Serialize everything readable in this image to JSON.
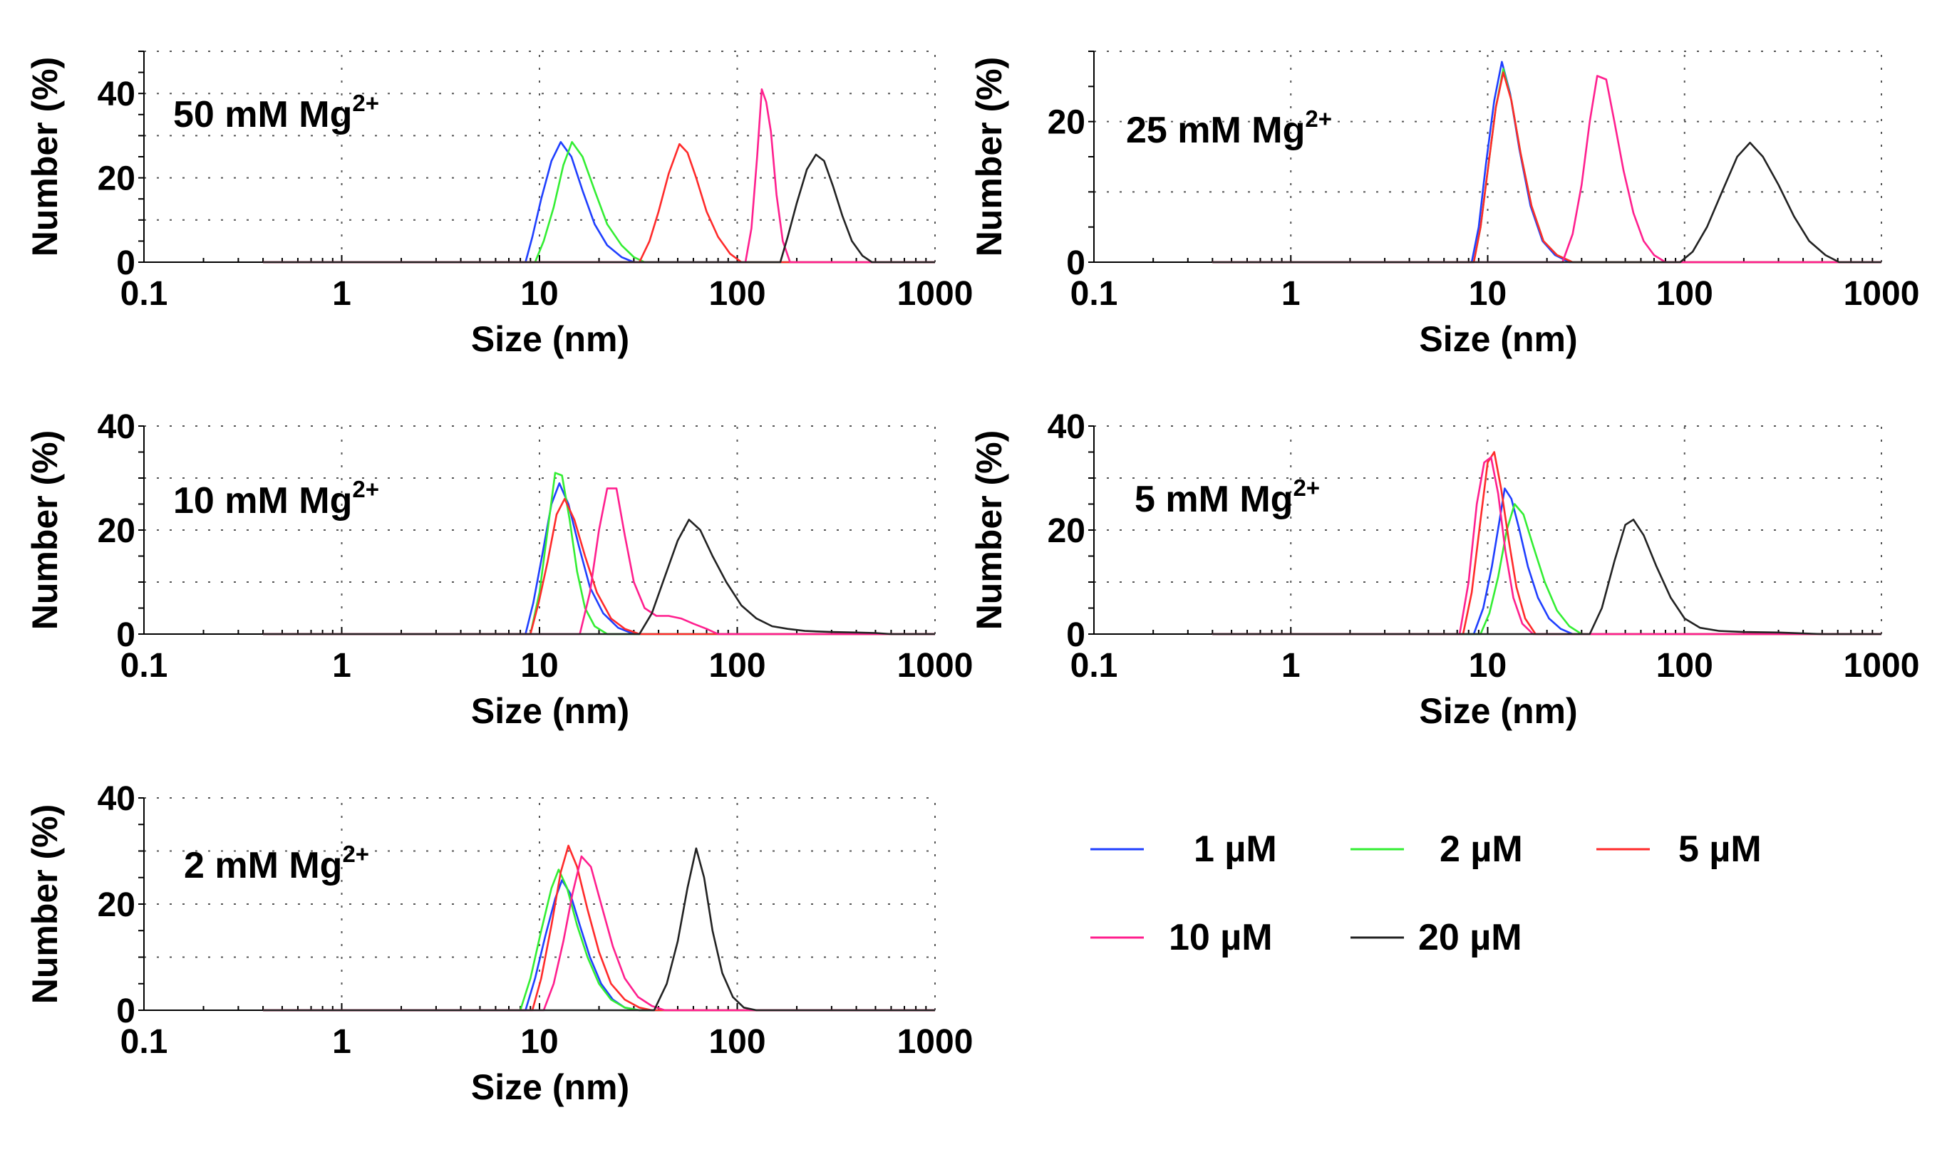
{
  "figure": "dls_size_distributions",
  "legend": {
    "items": [
      {
        "key": "s1",
        "label": "1 µM",
        "color": "#1f3fff"
      },
      {
        "key": "s2",
        "label": "2 µM",
        "color": "#33ee33"
      },
      {
        "key": "s5",
        "label": "5 µM",
        "color": "#ff2a2a"
      },
      {
        "key": "s10",
        "label": "10 µM",
        "color": "#ff1f8e"
      },
      {
        "key": "s20",
        "label": "20 µM",
        "color": "#222222"
      }
    ]
  },
  "chart_data": [
    {
      "type": "line",
      "title": "50 mM Mg",
      "title_sup": "2+",
      "xlabel": "Size (nm)",
      "ylabel": "Number (%)",
      "xscale": "log",
      "xlim": [
        0.1,
        1000
      ],
      "ylim": [
        0,
        50
      ],
      "xticks": [
        0.1,
        1,
        10,
        100,
        1000
      ],
      "xtick_labels": [
        "0.1",
        "1",
        "10",
        "100",
        "1000"
      ],
      "yticks": [
        0,
        20,
        40
      ],
      "ytick_labels": [
        "0",
        "20",
        "40"
      ],
      "grid_y": [
        0,
        10,
        20,
        30,
        40,
        50
      ],
      "series": [
        {
          "name": "1 µM",
          "key": "s1",
          "x": [
            0.4,
            8.5,
            9.2,
            10.2,
            11.5,
            12.8,
            14.5,
            16.5,
            19,
            22,
            26,
            30,
            1000
          ],
          "y": [
            0,
            0,
            6,
            15,
            24,
            28.5,
            25,
            17,
            9,
            4,
            1.2,
            0,
            0
          ]
        },
        {
          "name": "2 µM",
          "key": "s2",
          "x": [
            0.4,
            9.5,
            10.5,
            11.8,
            13.2,
            14.6,
            16.5,
            19,
            22,
            26,
            30,
            34,
            1000
          ],
          "y": [
            0,
            0,
            5,
            13,
            23,
            28.5,
            25,
            17,
            9,
            4,
            1.2,
            0,
            0
          ]
        },
        {
          "name": "5 µM",
          "key": "s5",
          "x": [
            0.4,
            32,
            36,
            40,
            45,
            51,
            56,
            62,
            70,
            80,
            92,
            105,
            1000
          ],
          "y": [
            0,
            0,
            5,
            12,
            21,
            28,
            26,
            20,
            12,
            6,
            2,
            0,
            0
          ]
        },
        {
          "name": "10 µM",
          "key": "s10",
          "x": [
            0.4,
            110,
            118,
            126,
            133,
            140,
            148,
            158,
            170,
            185,
            1000
          ],
          "y": [
            0,
            0,
            8,
            25,
            41,
            38,
            31,
            16,
            5,
            0,
            0
          ]
        },
        {
          "name": "20 µM",
          "key": "s20",
          "x": [
            0.4,
            165,
            180,
            200,
            225,
            250,
            275,
            305,
            340,
            380,
            430,
            480,
            1000
          ],
          "y": [
            0,
            0,
            6,
            14,
            22,
            25.5,
            24,
            18,
            11,
            5,
            1.5,
            0,
            0
          ]
        }
      ]
    },
    {
      "type": "line",
      "title": "25 mM Mg",
      "title_sup": "2+",
      "xlabel": "Size (nm)",
      "ylabel": "Number (%)",
      "xscale": "log",
      "xlim": [
        0.1,
        1000
      ],
      "ylim": [
        0,
        30
      ],
      "xticks": [
        0.1,
        1,
        10,
        100,
        1000
      ],
      "xtick_labels": [
        "0.1",
        "1",
        "10",
        "100",
        "1000"
      ],
      "yticks": [
        0,
        20
      ],
      "ytick_labels": [
        "0",
        "20"
      ],
      "grid_y": [
        0,
        10,
        20,
        30
      ],
      "series": [
        {
          "name": "1 µM",
          "key": "s1",
          "x": [
            0.4,
            8.3,
            9,
            9.8,
            10.8,
            11.8,
            13,
            14.5,
            16.5,
            19,
            22,
            26,
            1000
          ],
          "y": [
            0,
            0,
            5,
            14,
            23,
            28.5,
            24,
            16,
            8,
            3,
            1,
            0,
            0
          ]
        },
        {
          "name": "2 µM",
          "key": "s2",
          "x": [
            0.4,
            8.5,
            9.2,
            10,
            11,
            12,
            13.2,
            14.7,
            16.7,
            19.2,
            22.5,
            27,
            1000
          ],
          "y": [
            0,
            0,
            5,
            13,
            22,
            27.5,
            23,
            15.5,
            8,
            3,
            1,
            0,
            0
          ]
        },
        {
          "name": "5 µM",
          "key": "s5",
          "x": [
            0.4,
            8.5,
            9.2,
            10,
            11,
            12,
            13.2,
            14.7,
            16.7,
            19.2,
            22.5,
            27,
            1000
          ],
          "y": [
            0,
            0,
            5,
            13,
            22,
            27,
            23,
            15.5,
            8,
            3,
            1,
            0,
            0
          ]
        },
        {
          "name": "10 µM",
          "key": "s10",
          "x": [
            0.4,
            24,
            27,
            30,
            33,
            36,
            40,
            44,
            49,
            55,
            62,
            70,
            80,
            1000
          ],
          "y": [
            0,
            0,
            4,
            11,
            20,
            26.5,
            26,
            20,
            13,
            7,
            3,
            1,
            0,
            0
          ]
        },
        {
          "name": "20 µM",
          "key": "s20",
          "x": [
            0.4,
            95,
            110,
            130,
            155,
            185,
            215,
            250,
            300,
            360,
            430,
            520,
            610,
            1000
          ],
          "y": [
            0,
            0,
            1.5,
            5,
            10,
            15,
            17,
            15,
            11,
            6.5,
            3,
            1,
            0,
            0
          ]
        }
      ]
    },
    {
      "type": "line",
      "title": "10 mM Mg",
      "title_sup": "2+",
      "xlabel": "Size (nm)",
      "ylabel": "Number (%)",
      "xscale": "log",
      "xlim": [
        0.1,
        1000
      ],
      "ylim": [
        0,
        40
      ],
      "xticks": [
        0.1,
        1,
        10,
        100,
        1000
      ],
      "xtick_labels": [
        "0.1",
        "1",
        "10",
        "100",
        "1000"
      ],
      "yticks": [
        0,
        20,
        40
      ],
      "ytick_labels": [
        "0",
        "20",
        "40"
      ],
      "grid_y": [
        0,
        10,
        20,
        30,
        40
      ],
      "series": [
        {
          "name": "1 µM",
          "key": "s1",
          "x": [
            0.4,
            8.5,
            9.3,
            10.3,
            11.5,
            12.6,
            14,
            15.8,
            18,
            21,
            25,
            30,
            1000
          ],
          "y": [
            0,
            0,
            6,
            15,
            25,
            29,
            25,
            17,
            9,
            4,
            1.2,
            0,
            0
          ]
        },
        {
          "name": "2 µM",
          "key": "s2",
          "x": [
            0.4,
            9,
            10,
            11,
            12,
            13,
            14.2,
            15.5,
            17,
            19,
            22,
            1000
          ],
          "y": [
            0,
            0,
            8,
            20,
            31,
            30.5,
            22,
            12,
            5,
            1.5,
            0,
            0
          ]
        },
        {
          "name": "5 µM",
          "key": "s5",
          "x": [
            0.4,
            9,
            9.9,
            11,
            12.2,
            13.4,
            15,
            17,
            19.5,
            23,
            27,
            32,
            1000
          ],
          "y": [
            0,
            0,
            6,
            14,
            23,
            26,
            22,
            15,
            8,
            3,
            1,
            0,
            0
          ]
        },
        {
          "name": "10 µM",
          "key": "s10",
          "x": [
            0.4,
            16,
            18,
            20,
            22,
            24.5,
            27,
            30,
            34,
            39,
            45,
            52,
            60,
            70,
            80,
            1000
          ],
          "y": [
            0,
            0,
            8,
            20,
            28,
            28,
            19,
            10,
            5,
            3.5,
            3.5,
            3,
            2,
            1,
            0,
            0
          ]
        },
        {
          "name": "20 µM",
          "key": "s20",
          "x": [
            0.4,
            32,
            37,
            43,
            50,
            57,
            65,
            75,
            88,
            105,
            125,
            150,
            180,
            220,
            300,
            400,
            500,
            600,
            1000
          ],
          "y": [
            0,
            0,
            4,
            11,
            18,
            22,
            20,
            15,
            10,
            5.5,
            3,
            1.5,
            1,
            0.6,
            0.4,
            0.3,
            0.2,
            0,
            0
          ]
        }
      ]
    },
    {
      "type": "line",
      "title": "5 mM Mg",
      "title_sup": "2+",
      "xlabel": "Size (nm)",
      "ylabel": "Number (%)",
      "xscale": "log",
      "xlim": [
        0.1,
        1000
      ],
      "ylim": [
        0,
        40
      ],
      "xticks": [
        0.1,
        1,
        10,
        100,
        1000
      ],
      "xtick_labels": [
        "0.1",
        "1",
        "10",
        "100",
        "1000"
      ],
      "yticks": [
        0,
        20,
        40
      ],
      "ytick_labels": [
        "0",
        "20",
        "40"
      ],
      "grid_y": [
        0,
        10,
        20,
        30,
        40
      ],
      "series": [
        {
          "name": "1 µM",
          "key": "s1",
          "x": [
            0.4,
            8.5,
            9.5,
            10.5,
            11.5,
            12.2,
            13.2,
            14.5,
            16,
            18,
            20.5,
            23.5,
            27,
            1000
          ],
          "y": [
            0,
            0,
            5,
            13,
            22,
            28,
            26,
            20,
            13,
            7,
            3,
            1,
            0,
            0
          ]
        },
        {
          "name": "2 µM",
          "key": "s2",
          "x": [
            0.4,
            9.2,
            10.2,
            11.3,
            12.5,
            13.7,
            15.2,
            17,
            19.5,
            22.5,
            26,
            30,
            1000
          ],
          "y": [
            0,
            0,
            4,
            11,
            20,
            25,
            23,
            17,
            10,
            4.5,
            1.5,
            0,
            0
          ]
        },
        {
          "name": "5 µM",
          "key": "s5",
          "x": [
            0.4,
            7.5,
            8.3,
            9.2,
            10,
            10.8,
            11.7,
            12.8,
            14,
            15.5,
            17.5,
            1000
          ],
          "y": [
            0,
            0,
            8,
            22,
            33,
            35,
            28,
            18,
            9,
            3,
            0,
            0
          ]
        },
        {
          "name": "10 µM",
          "key": "s10",
          "x": [
            0.4,
            7.2,
            8,
            8.8,
            9.6,
            10.4,
            11.3,
            12.3,
            13.5,
            15,
            17,
            1000
          ],
          "y": [
            0,
            0,
            10,
            25,
            33,
            34,
            27,
            16,
            7,
            2,
            0,
            0
          ]
        },
        {
          "name": "20 µM",
          "key": "s20",
          "x": [
            0.4,
            33,
            38,
            44,
            50,
            55,
            62,
            72,
            85,
            100,
            120,
            150,
            200,
            300,
            500,
            1000
          ],
          "y": [
            0,
            0,
            5,
            14,
            21,
            22,
            19,
            13,
            7,
            3,
            1.2,
            0.6,
            0.4,
            0.3,
            0,
            0
          ]
        }
      ]
    },
    {
      "type": "line",
      "title": "2 mM Mg",
      "title_sup": "2+",
      "xlabel": "Size (nm)",
      "ylabel": "Number (%)",
      "xscale": "log",
      "xlim": [
        0.1,
        1000
      ],
      "ylim": [
        0,
        40
      ],
      "xticks": [
        0.1,
        1,
        10,
        100,
        1000
      ],
      "xtick_labels": [
        "0.1",
        "1",
        "10",
        "100",
        "1000"
      ],
      "yticks": [
        0,
        20,
        40
      ],
      "ytick_labels": [
        "0",
        "20",
        "40"
      ],
      "grid_y": [
        0,
        10,
        20,
        30,
        40
      ],
      "series": [
        {
          "name": "1 µM",
          "key": "s1",
          "x": [
            0.4,
            8.5,
            9.5,
            10.7,
            12,
            13,
            14.3,
            16,
            18,
            20.5,
            23.5,
            27,
            32,
            1000
          ],
          "y": [
            0,
            0,
            6,
            14,
            21,
            24.5,
            22,
            16,
            10,
            5,
            2,
            0.5,
            0,
            0
          ]
        },
        {
          "name": "2 µM",
          "key": "s2",
          "x": [
            0.4,
            8,
            9,
            10.2,
            11.5,
            12.5,
            13.8,
            15.5,
            17.5,
            20,
            23,
            27,
            32,
            1000
          ],
          "y": [
            0,
            0,
            6,
            15,
            23,
            26.5,
            23,
            16,
            10,
            5,
            2,
            0.5,
            0,
            0
          ]
        },
        {
          "name": "5 µM",
          "key": "s5",
          "x": [
            0.4,
            9.2,
            10.2,
            11.5,
            12.8,
            14,
            15.5,
            17.5,
            20,
            23,
            27,
            32,
            37,
            1000
          ],
          "y": [
            0,
            0,
            6,
            16,
            26,
            31,
            27,
            19,
            11,
            5,
            2,
            0.5,
            0,
            0
          ]
        },
        {
          "name": "10 µM",
          "key": "s10",
          "x": [
            0.4,
            10.5,
            11.8,
            13.2,
            14.7,
            16.3,
            18.2,
            20.5,
            23.5,
            27,
            31.5,
            37,
            43,
            1000
          ],
          "y": [
            0,
            0,
            5,
            13,
            22,
            29,
            27,
            20,
            12,
            6,
            2.5,
            0.8,
            0,
            0
          ]
        },
        {
          "name": "20 µM",
          "key": "s20",
          "x": [
            0.4,
            38,
            44,
            50,
            56,
            62,
            68,
            75,
            84,
            95,
            108,
            125,
            1000
          ],
          "y": [
            0,
            0,
            5,
            13,
            23,
            30.5,
            25,
            15,
            7,
            2.5,
            0.5,
            0,
            0
          ]
        }
      ]
    }
  ]
}
